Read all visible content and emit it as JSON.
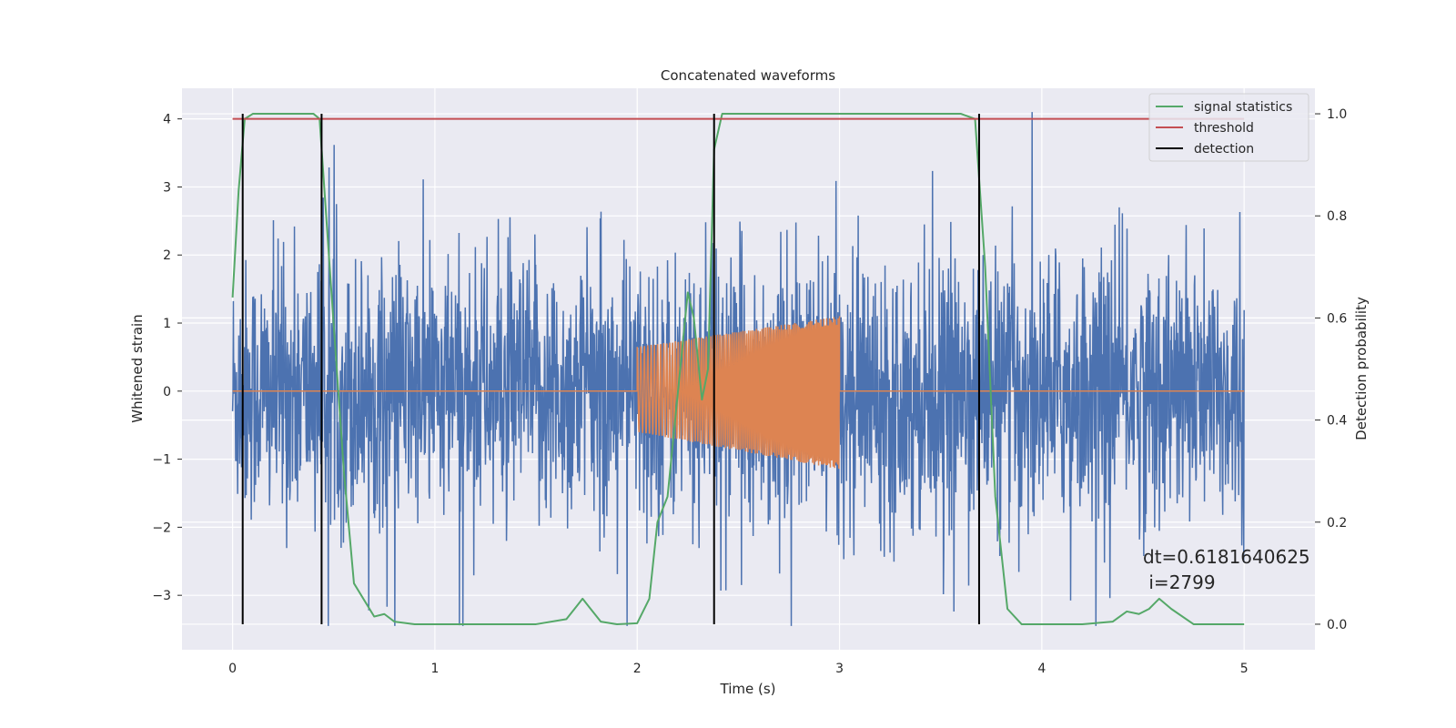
{
  "chart_data": {
    "type": "line",
    "title": "Concatenated waveforms",
    "xlabel": "Time (s)",
    "ylabel": "Whitened strain",
    "y2label": "Detection probability",
    "xlim": [
      -0.25,
      5.35
    ],
    "ylim": [
      -3.8,
      4.45
    ],
    "y2lim": [
      -0.05,
      1.05
    ],
    "xticks": [
      0,
      1,
      2,
      3,
      4,
      5
    ],
    "yticks": [
      -3,
      -2,
      -1,
      0,
      1,
      2,
      3,
      4
    ],
    "y2ticks": [
      0.0,
      0.2,
      0.4,
      0.6,
      0.8,
      1.0
    ],
    "grid": true,
    "legend_position": "top-right",
    "series": [
      {
        "name": "",
        "axis": "left",
        "kind": "noise",
        "color": "#4c72b0",
        "x_start": 0,
        "x_end": 5,
        "band_low": -2.0,
        "band_high": 2.2,
        "peak_max": 4.1,
        "peak_min": -3.45
      },
      {
        "name": "",
        "axis": "left",
        "kind": "chirp",
        "color": "#dd8452",
        "x_start": 0,
        "x_end": 5,
        "chirp_start": 2.0,
        "chirp_end": 3.0,
        "amp_upper_start": 0.65,
        "amp_upper_end": 1.1,
        "amp_lower_start": -0.6,
        "amp_lower_end": -1.15
      },
      {
        "name": "signal statistics",
        "axis": "right",
        "color": "#55a868",
        "x": [
          0.0,
          0.03,
          0.06,
          0.1,
          0.2,
          0.4,
          0.43,
          0.48,
          0.55,
          0.6,
          0.7,
          0.75,
          0.8,
          0.9,
          1.0,
          1.5,
          1.65,
          1.7,
          1.73,
          1.76,
          1.82,
          1.9,
          2.0,
          2.06,
          2.1,
          2.15,
          2.2,
          2.25,
          2.28,
          2.32,
          2.35,
          2.38,
          2.42,
          2.5,
          3.0,
          3.6,
          3.67,
          3.72,
          3.77,
          3.83,
          3.9,
          4.0,
          4.2,
          4.35,
          4.42,
          4.48,
          4.53,
          4.58,
          4.64,
          4.75,
          5.0
        ],
        "y": [
          0.64,
          0.85,
          0.99,
          1.0,
          1.0,
          1.0,
          0.99,
          0.7,
          0.3,
          0.08,
          0.015,
          0.02,
          0.005,
          0.0,
          0.0,
          0.0,
          0.01,
          0.035,
          0.05,
          0.035,
          0.005,
          0.0,
          0.002,
          0.05,
          0.2,
          0.25,
          0.45,
          0.65,
          0.6,
          0.44,
          0.5,
          0.93,
          1.0,
          1.0,
          1.0,
          1.0,
          0.99,
          0.7,
          0.25,
          0.03,
          0.0,
          0.0,
          0.0,
          0.005,
          0.025,
          0.02,
          0.03,
          0.05,
          0.03,
          0.0,
          0.0
        ]
      },
      {
        "name": "threshold",
        "axis": "right",
        "color": "#c44e52",
        "x": [
          0,
          5
        ],
        "y": [
          0.99,
          0.99
        ]
      },
      {
        "name": "detection",
        "axis": "right",
        "color": "#000000",
        "kind": "vlines",
        "x": [
          0.05,
          0.44,
          2.38,
          3.69
        ],
        "y_range": [
          0.0,
          1.0
        ]
      }
    ],
    "annotation": {
      "line1": "dt=0.6181640625",
      "line2": " i=2799",
      "x": 4.5,
      "y": -2.5
    }
  }
}
